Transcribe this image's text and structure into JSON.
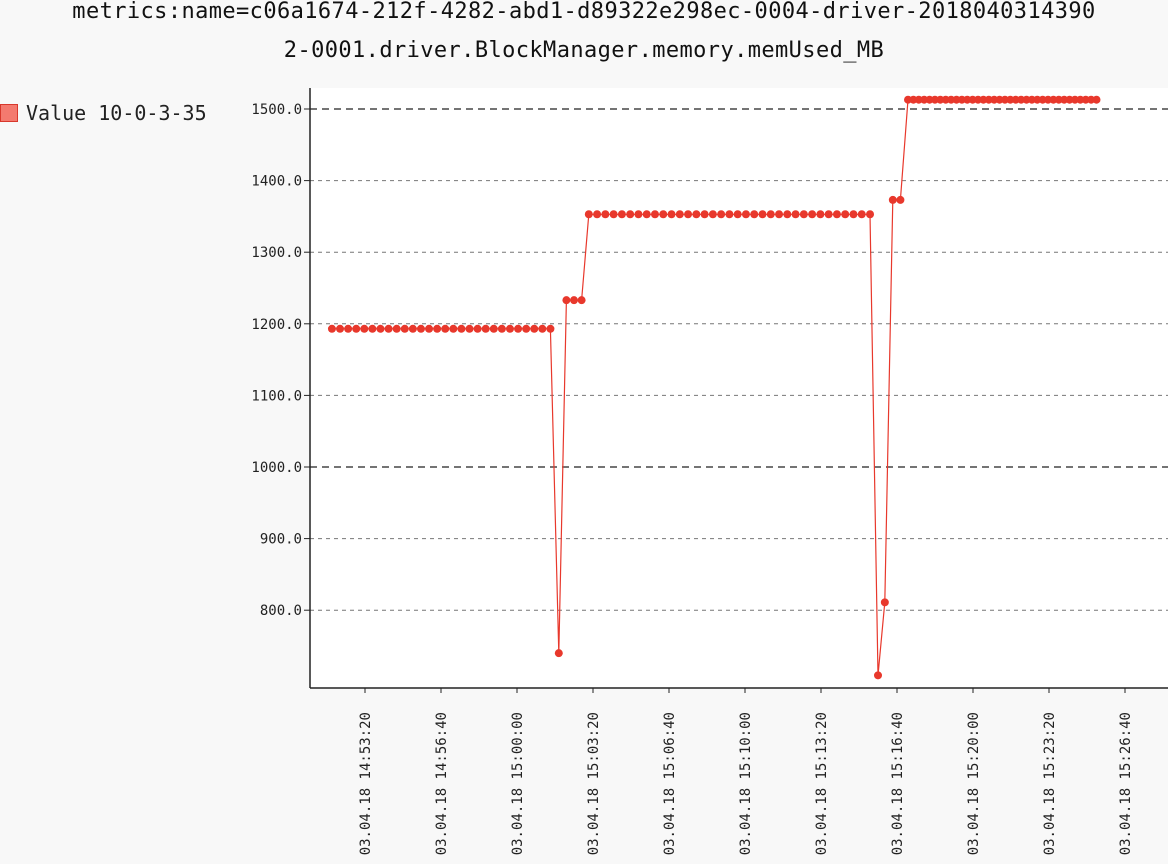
{
  "chart_data": {
    "type": "line",
    "title_lines": [
      "metrics:name=c06a1674-212f-4282-abd1-d89322e298ec-0004-driver-2018040314390",
      "2-0001.driver.BlockManager.memory.memUsed_MB"
    ],
    "legend": {
      "entries": [
        "Value 10-0-3-35"
      ],
      "position": "left"
    },
    "ylim": [
      700,
      1530
    ],
    "yticks": [
      800,
      900,
      1000,
      1100,
      1200,
      1300,
      1400,
      1500
    ],
    "ytick_labels": [
      "800.0",
      "900.0",
      "1000.0",
      "1100.0",
      "1200.0",
      "1300.0",
      "1400.0",
      "1500.0"
    ],
    "x_range_seconds": [
      -87,
      1925
    ],
    "xticks": [
      {
        "t": 0,
        "label": "03.04.18 14:53:20"
      },
      {
        "t": 200,
        "label": "03.04.18 14:56:40"
      },
      {
        "t": 400,
        "label": "03.04.18 15:00:00"
      },
      {
        "t": 600,
        "label": "03.04.18 15:03:20"
      },
      {
        "t": 800,
        "label": "03.04.18 15:06:40"
      },
      {
        "t": 1000,
        "label": "03.04.18 15:10:00"
      },
      {
        "t": 1200,
        "label": "03.04.18 15:13:20"
      },
      {
        "t": 1400,
        "label": "03.04.18 15:16:40"
      },
      {
        "t": 1600,
        "label": "03.04.18 15:20:00"
      },
      {
        "t": 1800,
        "label": "03.04.18 15:23:20"
      },
      {
        "t": 2000,
        "label": "03.04.18 15:26:40"
      }
    ],
    "grid": true,
    "bold_grid_values": [
      1000,
      1500
    ],
    "series": [
      {
        "name": "Value 10-0-3-35",
        "color": "#e8382c",
        "segments": [
          {
            "t_start": -87,
            "t_end": 488,
            "count": 28,
            "value": 1193
          },
          {
            "t_start": 510,
            "value": 740
          },
          {
            "t_start": 530,
            "t_end": 570,
            "count": 3,
            "value": 1233
          },
          {
            "t_start": 589,
            "t_end": 1329,
            "count": 35,
            "value": 1353
          },
          {
            "t_start": 1350,
            "value": 709
          },
          {
            "t_start": 1368,
            "value": 811
          },
          {
            "t_start": 1389,
            "t_end": 1409,
            "count": 2,
            "value": 1373
          },
          {
            "t_start": 1429,
            "t_end": 1925,
            "count": 36,
            "value": 1513
          }
        ]
      }
    ]
  }
}
